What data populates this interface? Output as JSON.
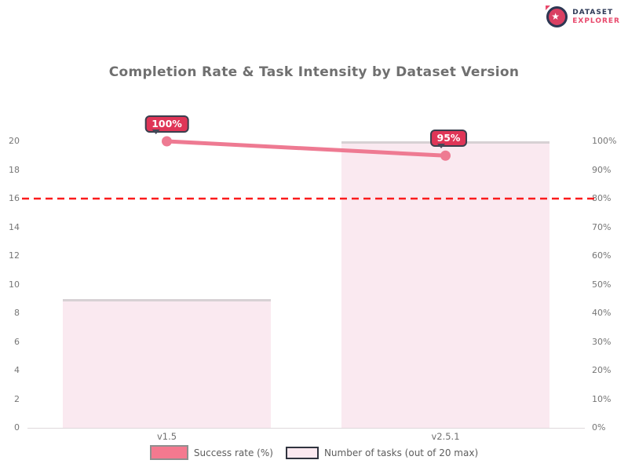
{
  "brand": {
    "name_line1": "DATASET",
    "name_line2": "EXPLORER",
    "icon": "rocket-circle-icon",
    "navy": "#2e3a57",
    "pink": "#e8486b"
  },
  "title": "Completion Rate & Task Intensity by Dataset Version",
  "chart_data": {
    "type": "bar",
    "subtype": "bar-line-combo",
    "categories": [
      "v1.5",
      "v2.5.1"
    ],
    "series": [
      {
        "name": "Success rate (%)",
        "type": "line",
        "axis": "right",
        "values": [
          100,
          95
        ],
        "point_labels": [
          "100%",
          "95%"
        ],
        "color": "#ee7a92"
      },
      {
        "name": "Number of tasks (out of 20 max)",
        "type": "bar",
        "axis": "left",
        "values": [
          9,
          20
        ],
        "color": "#fae9f0"
      }
    ],
    "left_axis": {
      "min": 0,
      "max": 20,
      "step": 2,
      "ticks": [
        "20",
        "18",
        "16",
        "14",
        "12",
        "10",
        "8",
        "6",
        "4",
        "2",
        "0"
      ]
    },
    "right_axis": {
      "min": 0,
      "max": 100,
      "step": 10,
      "ticks": [
        "100%",
        "90%",
        "80%",
        "70%",
        "60%",
        "50%",
        "40%",
        "30%",
        "20%",
        "10%",
        "0%"
      ]
    },
    "threshold": {
      "value": 80,
      "axis": "right",
      "color": "#fb1b1c",
      "style": "dashed"
    },
    "legend_position": "bottom",
    "grid": false,
    "background": "#ffffff"
  },
  "legend": [
    {
      "label": "Success rate (%)",
      "swatch_fill": "#f4798f",
      "swatch_border": "#8f8f8f",
      "swatch_w": 49,
      "swatch_h": 19
    },
    {
      "label": "Number of tasks (out of 20 max)",
      "swatch_fill": "#fbe9f0",
      "swatch_border": "#30343f",
      "swatch_w": 42,
      "swatch_h": 16
    }
  ]
}
